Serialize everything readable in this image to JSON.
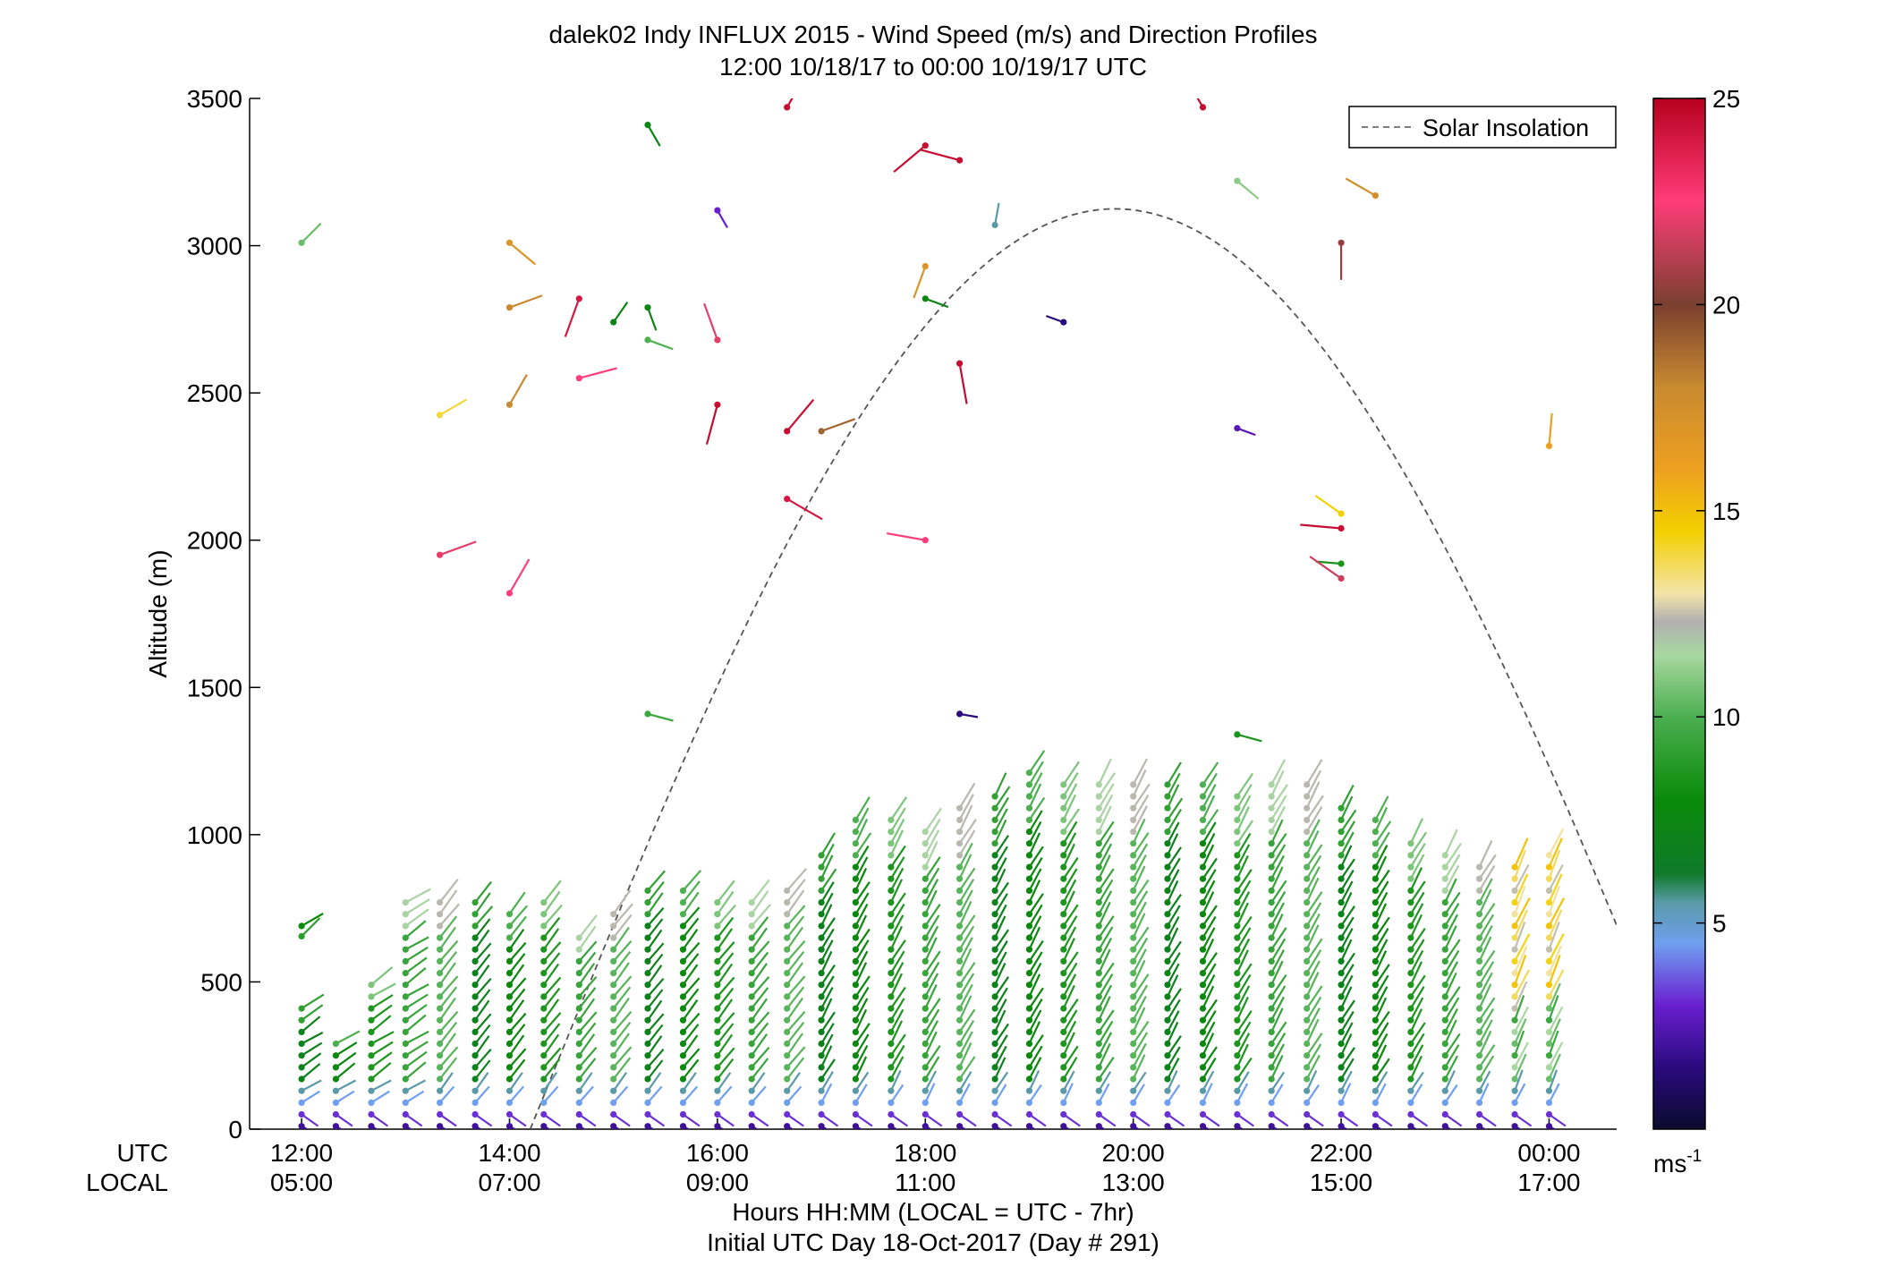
{
  "chart_data": {
    "type": "scatter",
    "title": "dalek02 Indy INFLUX 2015 - Wind Speed (m/s) and Direction Profiles",
    "subtitle": "12:00 10/18/17 to 00:00 10/19/17  UTC",
    "ylabel": "Altitude (m)",
    "ylim": [
      0,
      3500
    ],
    "yticks": [
      "0",
      "500",
      "1000",
      "1500",
      "2000",
      "2500",
      "3000",
      "3500"
    ],
    "xlim": [
      11.5,
      24.65
    ],
    "xticks_utc": [
      "12:00",
      "14:00",
      "16:00",
      "18:00",
      "20:00",
      "22:00",
      "00:00"
    ],
    "xticks_local": [
      "05:00",
      "07:00",
      "09:00",
      "11:00",
      "13:00",
      "15:00",
      "17:00"
    ],
    "row_label_utc": "UTC",
    "row_label_local": "LOCAL",
    "xlabel": "Hours HH:MM  (LOCAL = UTC - 7hr)",
    "xlabel2": "Initial UTC Day 18-Oct-2017 (Day # 291)",
    "legend": {
      "label": "Solar Insolation",
      "position": "top-right"
    },
    "colorbar": {
      "range": [
        0,
        25
      ],
      "ticks": [
        "5",
        "10",
        "15",
        "20",
        "25"
      ],
      "unit": "ms",
      "unit_exp": "-1"
    },
    "solar_insolation": {
      "peak_time_utc": 19.83,
      "peak_altitude_m": 3125,
      "span_utc": [
        14.2,
        25.45
      ],
      "color": "#555555"
    },
    "profiles": {
      "times_utc": [
        12.0,
        12.33,
        12.67,
        13.0,
        13.33,
        13.67,
        14.0,
        14.33,
        14.67,
        15.0,
        15.33,
        15.67,
        16.0,
        16.33,
        16.67,
        17.0,
        17.33,
        17.67,
        18.0,
        18.33,
        18.67,
        19.0,
        19.33,
        19.67,
        20.0,
        20.33,
        20.67,
        21.0,
        21.33,
        21.67,
        22.0,
        22.33,
        22.67,
        23.0,
        23.33,
        23.67,
        24.0
      ],
      "tops_m": [
        430,
        310,
        490,
        790,
        790,
        790,
        730,
        790,
        680,
        760,
        830,
        830,
        790,
        790,
        830,
        950,
        1050,
        1050,
        1010,
        1090,
        1130,
        1210,
        1170,
        1170,
        1170,
        1170,
        1170,
        1130,
        1170,
        1170,
        1090,
        1050,
        990,
        950,
        910,
        910,
        950
      ],
      "spacing_m": 40
    },
    "isolated_barbs": [
      {
        "t": 12.0,
        "alt": 3010,
        "speed": 10.5,
        "dir": 225
      },
      {
        "t": 12.0,
        "alt": 690,
        "speed": 8.0,
        "dir": 240
      },
      {
        "t": 12.0,
        "alt": 655,
        "speed": 9.0,
        "dir": 225
      },
      {
        "t": 13.33,
        "alt": 2425,
        "speed": 14.0,
        "dir": 240
      },
      {
        "t": 13.33,
        "alt": 1950,
        "speed": 22.0,
        "dir": 250
      },
      {
        "t": 14.0,
        "alt": 3010,
        "speed": 17.0,
        "dir": 310
      },
      {
        "t": 14.0,
        "alt": 2790,
        "speed": 18.0,
        "dir": 250
      },
      {
        "t": 14.0,
        "alt": 2460,
        "speed": 18.0,
        "dir": 210
      },
      {
        "t": 14.0,
        "alt": 1820,
        "speed": 22.5,
        "dir": 210
      },
      {
        "t": 14.67,
        "alt": 2820,
        "speed": 24.0,
        "dir": 20
      },
      {
        "t": 14.67,
        "alt": 2550,
        "speed": 22.5,
        "dir": 255
      },
      {
        "t": 15.0,
        "alt": 2740,
        "speed": 7.5,
        "dir": 215
      },
      {
        "t": 15.33,
        "alt": 3410,
        "speed": 7.5,
        "dir": 330
      },
      {
        "t": 15.33,
        "alt": 2790,
        "speed": 7.5,
        "dir": 340
      },
      {
        "t": 15.33,
        "alt": 2680,
        "speed": 10.0,
        "dir": 290
      },
      {
        "t": 15.33,
        "alt": 1410,
        "speed": 9.5,
        "dir": 285
      },
      {
        "t": 16.0,
        "alt": 3120,
        "speed": 3.0,
        "dir": 330
      },
      {
        "t": 16.0,
        "alt": 2680,
        "speed": 22.0,
        "dir": 160
      },
      {
        "t": 16.0,
        "alt": 2460,
        "speed": 24.5,
        "dir": 15
      },
      {
        "t": 16.67,
        "alt": 3470,
        "speed": 24.5,
        "dir": 210
      },
      {
        "t": 16.67,
        "alt": 2370,
        "speed": 24.5,
        "dir": 220
      },
      {
        "t": 16.67,
        "alt": 2140,
        "speed": 24.0,
        "dir": 300
      },
      {
        "t": 17.0,
        "alt": 2370,
        "speed": 19.0,
        "dir": 250
      },
      {
        "t": 18.0,
        "alt": 3340,
        "speed": 24.5,
        "dir": 50
      },
      {
        "t": 18.0,
        "alt": 2930,
        "speed": 17.0,
        "dir": 20
      },
      {
        "t": 18.0,
        "alt": 2820,
        "speed": 7.5,
        "dir": 290
      },
      {
        "t": 18.0,
        "alt": 2000,
        "speed": 22.5,
        "dir": 100
      },
      {
        "t": 18.33,
        "alt": 3290,
        "speed": 24.5,
        "dir": 105
      },
      {
        "t": 18.33,
        "alt": 2600,
        "speed": 24.5,
        "dir": 350
      },
      {
        "t": 18.33,
        "alt": 1410,
        "speed": 1.5,
        "dir": 280
      },
      {
        "t": 18.67,
        "alt": 3070,
        "speed": 5.5,
        "dir": 190
      },
      {
        "t": 19.33,
        "alt": 2740,
        "speed": 1.5,
        "dir": 110
      },
      {
        "t": 20.67,
        "alt": 3470,
        "speed": 24.5,
        "dir": 150
      },
      {
        "t": 21.0,
        "alt": 3220,
        "speed": 11.0,
        "dir": 310
      },
      {
        "t": 21.0,
        "alt": 2380,
        "speed": 2.5,
        "dir": 290
      },
      {
        "t": 21.0,
        "alt": 1340,
        "speed": 8.5,
        "dir": 285
      },
      {
        "t": 22.0,
        "alt": 3010,
        "speed": 20.5,
        "dir": 0
      },
      {
        "t": 22.0,
        "alt": 2090,
        "speed": 14.5,
        "dir": 125
      },
      {
        "t": 22.0,
        "alt": 2040,
        "speed": 24.5,
        "dir": 95
      },
      {
        "t": 22.0,
        "alt": 1920,
        "speed": 8.5,
        "dir": 95
      },
      {
        "t": 22.0,
        "alt": 1870,
        "speed": 21.5,
        "dir": 125
      },
      {
        "t": 22.33,
        "alt": 3170,
        "speed": 17.5,
        "dir": 120
      },
      {
        "t": 24.0,
        "alt": 2320,
        "speed": 16.0,
        "dir": 185
      }
    ]
  }
}
